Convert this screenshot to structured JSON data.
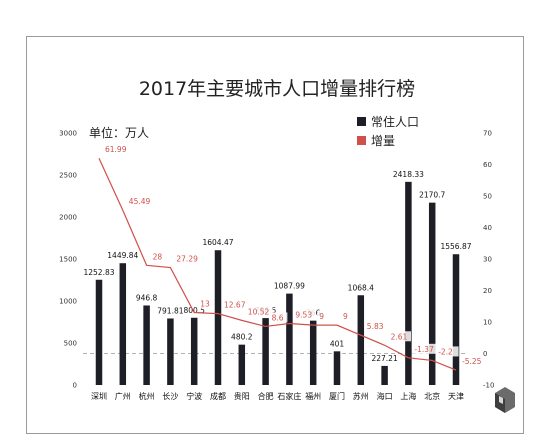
{
  "chart_data": {
    "type": "bar",
    "title": "2017年主要城市人口增量排行榜",
    "unit_label": "单位：万人",
    "categories": [
      "深圳",
      "广州",
      "杭州",
      "长沙",
      "宁波",
      "成都",
      "贵阳",
      "合肥",
      "石家庄",
      "福州",
      "厦门",
      "苏州",
      "海口",
      "上海",
      "北京",
      "天津"
    ],
    "series": [
      {
        "name": "常住人口",
        "type": "bar",
        "axis": "left",
        "color": "#1e1e26",
        "values": [
          1252.83,
          1449.84,
          946.8,
          791.81,
          800.5,
          1604.47,
          480.2,
          796.5,
          1087.99,
          766,
          401,
          1068.4,
          227.21,
          2418.33,
          2170.7,
          1556.87
        ],
        "labels": [
          "1252.83",
          "1449.84",
          "946.8",
          "791.81",
          "800.5",
          "1604.47",
          "480.2",
          "796.5",
          "1087.99",
          "766",
          "401",
          "1068.4",
          "227.21",
          "2418.33",
          "2170.7",
          "1556.87"
        ]
      },
      {
        "name": "增量",
        "type": "line",
        "axis": "right",
        "color": "#d0504a",
        "values": [
          61.99,
          45.49,
          28,
          27.29,
          13,
          12.67,
          10.52,
          8.6,
          9.53,
          9,
          9,
          5.83,
          2.61,
          -1.37,
          -2.2,
          -5.25
        ],
        "labels": [
          "61.99",
          "45.49",
          "28",
          "27.29",
          "13",
          "12.67",
          "10.52",
          "8.6",
          "9.53",
          "9",
          "9",
          "5.83",
          "2.61",
          "-1.37",
          "-2.2",
          "-5.25"
        ]
      }
    ],
    "y_left": {
      "min": 0,
      "max": 3000,
      "ticks": [
        "0",
        "500",
        "1000",
        "1500",
        "2000",
        "2500",
        "3000"
      ]
    },
    "y_right": {
      "min": -10,
      "max": 70,
      "ticks": [
        "-10",
        "0",
        "10",
        "20",
        "30",
        "40",
        "50",
        "60",
        "70"
      ]
    },
    "legend_position": "top-right",
    "zero_line_color": "#999999"
  }
}
